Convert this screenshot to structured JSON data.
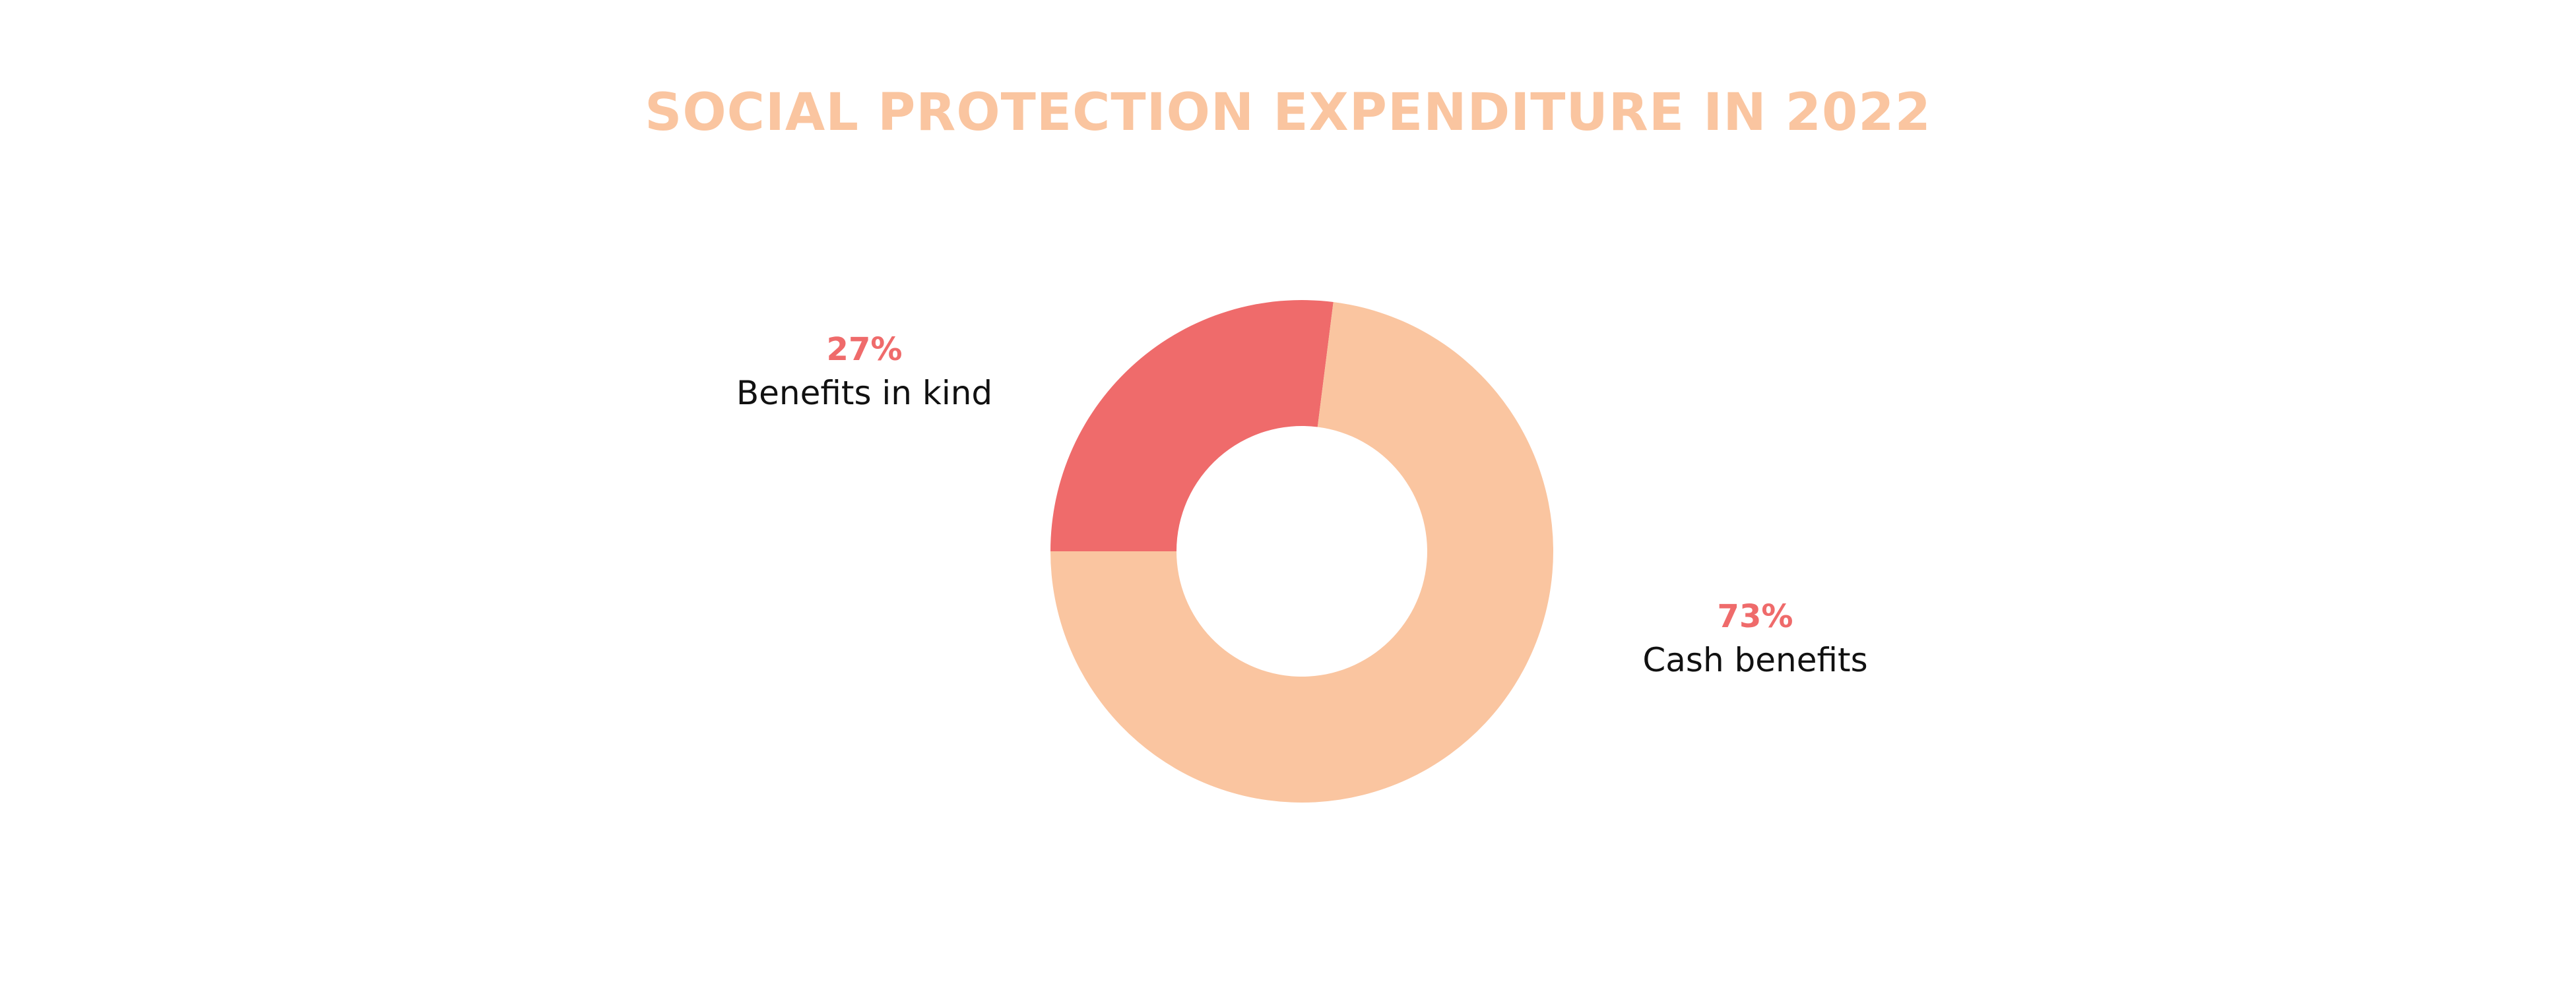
{
  "chart_data": {
    "type": "pie",
    "title": "SOCIAL PROTECTION EXPENDITURE IN 2022",
    "donut": true,
    "categories": [
      "Benefits in kind",
      "Cash benefits"
    ],
    "values": [
      27,
      73
    ],
    "value_labels": [
      "27%",
      "73%"
    ],
    "colors": [
      "#ef6b6b",
      "#fac5a0"
    ],
    "title_color": "#fac5a0",
    "value_label_color": "#ef6b6b",
    "legend": "none"
  }
}
